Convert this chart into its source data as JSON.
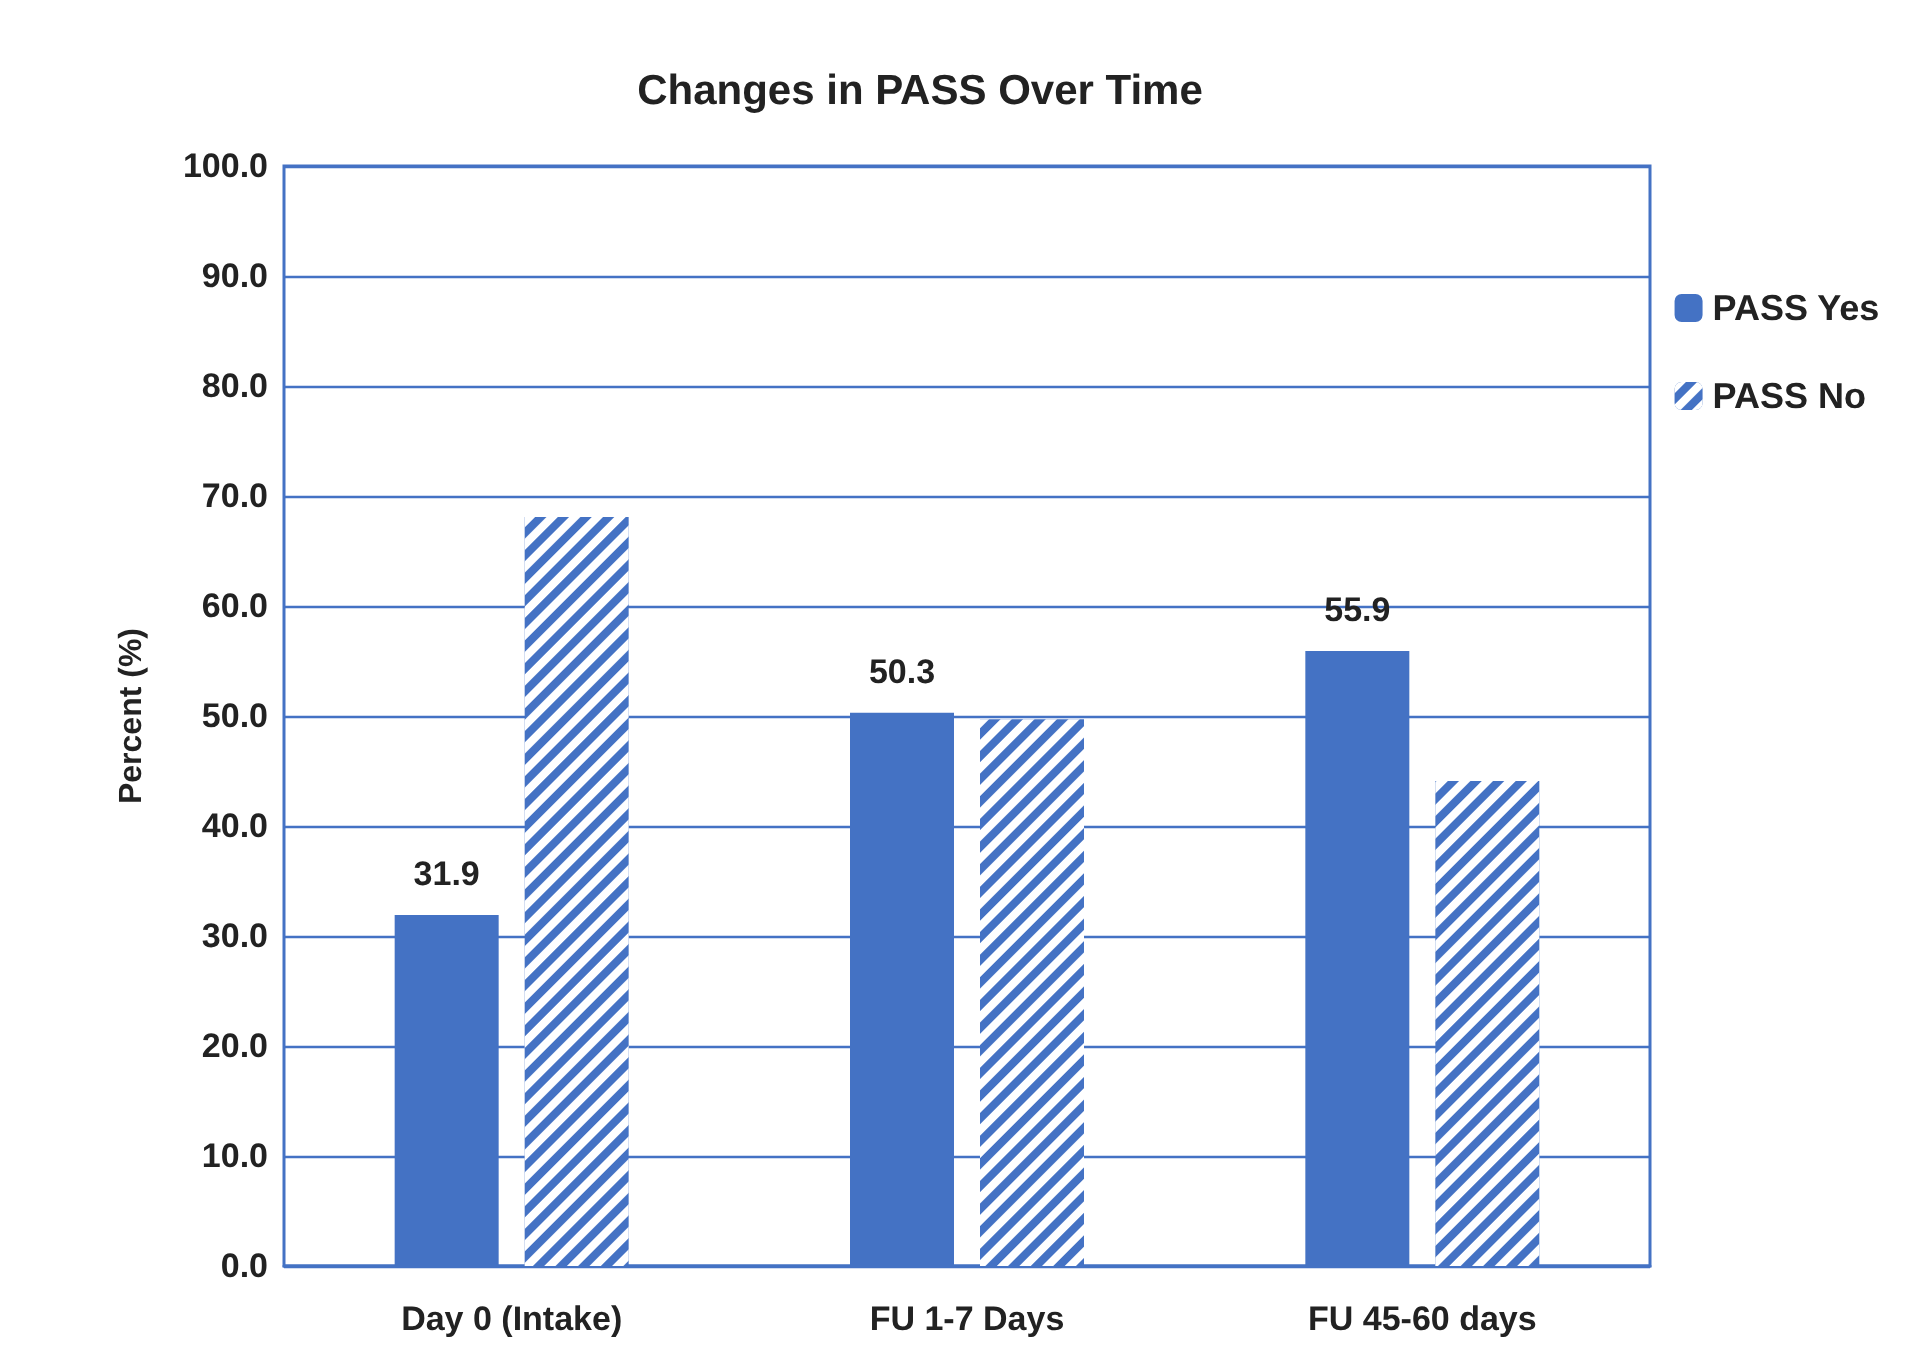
{
  "chart_data": {
    "type": "bar",
    "title": "Changes in PASS Over Time",
    "ylabel": "Percent (%)",
    "categories": [
      "Day 0 (Intake)",
      "FU 1-7 Days",
      "FU 45-60 days"
    ],
    "series": [
      {
        "name": "PASS Yes",
        "color": "#4472c4",
        "values": [
          31.9,
          50.3,
          55.9
        ],
        "value_labels": [
          "31.9",
          "50.3",
          "55.9"
        ]
      },
      {
        "name": "PASS No",
        "color": "#4472c4",
        "values": [
          68.1,
          49.7,
          44.1
        ]
      }
    ],
    "ylim": [
      0,
      100
    ],
    "yticks": [
      {
        "value": 0,
        "label": "0.0"
      },
      {
        "value": 10,
        "label": "10.0"
      },
      {
        "value": 20,
        "label": "20.0"
      },
      {
        "value": 30,
        "label": "30.0"
      },
      {
        "value": 40,
        "label": "40.0"
      },
      {
        "value": 50,
        "label": "50.0"
      },
      {
        "value": 60,
        "label": "60.0"
      },
      {
        "value": 70,
        "label": "70.0"
      },
      {
        "value": 80,
        "label": "80.0"
      },
      {
        "value": 90,
        "label": "90.0"
      },
      {
        "value": 100,
        "label": "100.0"
      }
    ],
    "grid": "y",
    "legend": "right"
  }
}
